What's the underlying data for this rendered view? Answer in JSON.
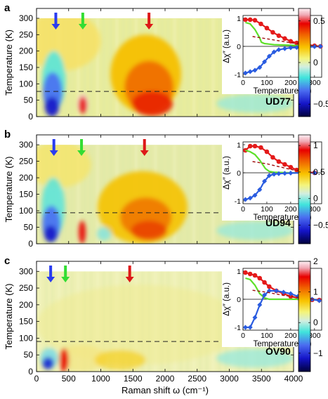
{
  "xlabel": "Raman shift ω (cm⁻¹)",
  "ylabel": "Temperature (K)",
  "inset_xlabel": "Temperature (K)",
  "inset_ylabel": "Δχ″ (a.u.)",
  "colors": {
    "blue_arrow": "#2a3cf0",
    "green_arrow": "#33dd33",
    "red_arrow": "#dd1818"
  },
  "chart_data": [
    {
      "type": "heatmap",
      "panel_label": "a",
      "sample": "UD77",
      "xlim": [
        0,
        4000
      ],
      "ylim": [
        0,
        330
      ],
      "x_ticks": [
        0,
        500,
        1000,
        1500,
        2000,
        2500,
        3000,
        3500,
        4000
      ],
      "x_tick_labels": [
        "",
        "",
        "",
        "",
        "",
        "",
        "",
        "",
        ""
      ],
      "y_ticks": [
        0,
        50,
        100,
        150,
        200,
        250,
        300
      ],
      "tc_dashed_line": 77,
      "colorbar": {
        "range": [
          -0.65,
          0.65
        ],
        "ticks": [
          -0.5,
          0,
          0.5
        ],
        "tick_labels": [
          "−0.5",
          "0",
          "0.5"
        ]
      },
      "arrows_cm": {
        "blue": 300,
        "green": 720,
        "red": 1750
      },
      "inset": {
        "xlim": [
          0,
          330
        ],
        "ylim": [
          -1.1,
          1.1
        ],
        "x_ticks": [
          0,
          100,
          200,
          300
        ],
        "y_ticks": [
          -1,
          0,
          1
        ],
        "series": [
          {
            "color": "red",
            "T": [
              10,
              30,
              50,
              75,
              100,
              125,
              150,
              175,
              200,
              225,
              250,
              275,
              300,
              325
            ],
            "values": [
              0.95,
              0.95,
              0.93,
              0.8,
              0.65,
              0.5,
              0.38,
              0.28,
              0.18,
              0.12,
              0.08,
              0.05,
              0.02,
              0.0
            ]
          },
          {
            "color": "green",
            "T": [
              10,
              30,
              50,
              70,
              77,
              90,
              110,
              130,
              160,
              200,
              250,
              300,
              325
            ],
            "values": [
              0.85,
              0.8,
              0.6,
              0.3,
              0.15,
              0.1,
              0.08,
              0.06,
              0.05,
              0.04,
              0.02,
              0.01,
              0.0
            ]
          },
          {
            "color": "blue",
            "T": [
              10,
              30,
              50,
              70,
              90,
              110,
              130,
              150,
              175,
              200,
              225,
              250,
              275,
              300,
              325
            ],
            "values": [
              -0.95,
              -0.9,
              -0.85,
              -0.75,
              -0.55,
              -0.35,
              -0.2,
              -0.12,
              -0.08,
              -0.05,
              -0.04,
              -0.03,
              -0.02,
              -0.01,
              0.0
            ]
          },
          {
            "color": "darkred-dashed",
            "T": [
              40,
              100,
              150,
              200,
              250,
              300,
              325
            ],
            "values": [
              0.35,
              0.27,
              0.2,
              0.13,
              0.07,
              0.02,
              0.0
            ]
          }
        ]
      }
    },
    {
      "type": "heatmap",
      "panel_label": "b",
      "sample": "UD94",
      "xlim": [
        0,
        4000
      ],
      "ylim": [
        0,
        330
      ],
      "x_ticks": [
        0,
        500,
        1000,
        1500,
        2000,
        2500,
        3000,
        3500,
        4000
      ],
      "x_tick_labels": [
        "",
        "",
        "",
        "",
        "",
        "",
        "",
        "",
        ""
      ],
      "y_ticks": [
        0,
        50,
        100,
        150,
        200,
        250,
        300
      ],
      "tc_dashed_line": 94,
      "colorbar": {
        "range": [
          -0.85,
          1.2
        ],
        "ticks": [
          -0.5,
          0,
          0.5,
          1
        ],
        "tick_labels": [
          "−0.5",
          "0",
          "0.5",
          "1"
        ]
      },
      "arrows_cm": {
        "blue": 270,
        "green": 700,
        "red": 1680
      },
      "inset": {
        "xlim": [
          0,
          330
        ],
        "ylim": [
          -1.1,
          1.1
        ],
        "x_ticks": [
          0,
          100,
          200,
          300
        ],
        "y_ticks": [
          -1,
          0,
          1
        ],
        "series": [
          {
            "color": "red",
            "T": [
              10,
              30,
              50,
              75,
              100,
              125,
              150,
              175,
              200,
              225,
              250,
              275,
              300
            ],
            "values": [
              0.8,
              0.95,
              0.95,
              0.9,
              0.75,
              0.55,
              0.4,
              0.3,
              0.2,
              0.1,
              0.05,
              0.02,
              0.0
            ]
          },
          {
            "color": "green",
            "T": [
              10,
              30,
              50,
              70,
              94,
              110,
              130,
              160,
              200,
              250,
              300
            ],
            "values": [
              0.8,
              0.75,
              0.65,
              0.45,
              0.15,
              0.05,
              0.02,
              0.01,
              0.0,
              0.0,
              0.0
            ]
          },
          {
            "color": "blue",
            "T": [
              10,
              30,
              50,
              70,
              90,
              110,
              130,
              150,
              175,
              200,
              250,
              300
            ],
            "values": [
              -0.95,
              -0.9,
              -0.8,
              -0.6,
              -0.3,
              -0.1,
              -0.05,
              -0.03,
              -0.02,
              -0.01,
              0.0,
              0.0
            ]
          },
          {
            "color": "darkred-dashed",
            "T": [
              40,
              100,
              150,
              200,
              250,
              300
            ],
            "values": [
              0.4,
              0.32,
              0.22,
              0.12,
              0.05,
              0.0
            ]
          }
        ]
      }
    },
    {
      "type": "heatmap",
      "panel_label": "c",
      "sample": "OV90",
      "xlim": [
        0,
        4000
      ],
      "ylim": [
        0,
        330
      ],
      "x_ticks": [
        0,
        500,
        1000,
        1500,
        2000,
        2500,
        3000,
        3500,
        4000
      ],
      "x_tick_labels": [
        "0",
        "500",
        "1000",
        "1500",
        "2000",
        "2500",
        "3000",
        "3500",
        "4000"
      ],
      "y_ticks": [
        0,
        50,
        100,
        150,
        200,
        250,
        300
      ],
      "tc_dashed_line": 90,
      "colorbar": {
        "range": [
          -1.6,
          2.0
        ],
        "ticks": [
          -1,
          0,
          1,
          2
        ],
        "tick_labels": [
          "−1",
          "0",
          "1",
          "2"
        ]
      },
      "arrows_cm": {
        "blue": 220,
        "green": 450,
        "red": 1450
      },
      "inset": {
        "xlim": [
          0,
          330
        ],
        "ylim": [
          -1.1,
          1.1
        ],
        "x_ticks": [
          0,
          100,
          200,
          300
        ],
        "y_ticks": [
          -1,
          0,
          1
        ],
        "series": [
          {
            "color": "red",
            "T": [
              10,
              30,
              50,
              70,
              90,
              110,
              140,
              170,
              200,
              230,
              260,
              290,
              320
            ],
            "values": [
              0.95,
              0.9,
              0.85,
              0.75,
              0.6,
              0.45,
              0.3,
              0.2,
              0.1,
              0.05,
              0.0,
              -0.02,
              -0.03
            ]
          },
          {
            "color": "green",
            "T": [
              10,
              30,
              50,
              70,
              90,
              110,
              150,
              200,
              250,
              300
            ],
            "values": [
              0.75,
              0.7,
              0.5,
              0.2,
              0.05,
              0.0,
              0.0,
              0.0,
              0.0,
              0.0
            ]
          },
          {
            "color": "blue",
            "T": [
              10,
              30,
              50,
              70,
              90,
              110,
              140,
              170,
              200,
              230,
              260,
              290,
              320
            ],
            "values": [
              -1.0,
              -1.0,
              -0.65,
              -0.2,
              0.15,
              0.3,
              0.3,
              0.25,
              0.2,
              0.1,
              0.05,
              0.0,
              -0.05
            ]
          },
          {
            "color": "darkred-dashed",
            "T": [
              40,
              100,
              150,
              200,
              250,
              300
            ],
            "values": [
              0.32,
              0.25,
              0.17,
              0.1,
              0.05,
              0.0
            ]
          }
        ]
      }
    }
  ]
}
